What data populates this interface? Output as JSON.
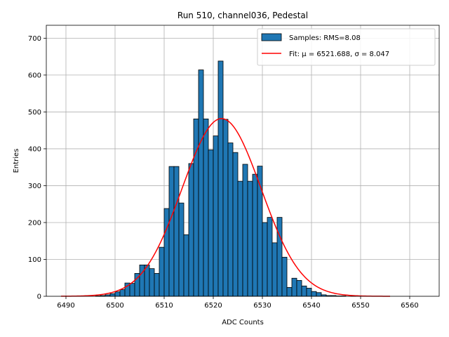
{
  "chart_data": {
    "type": "bar",
    "title": "Run 510, channel036, Pedestal",
    "xlabel": "ADC Counts",
    "ylabel": "Entries",
    "xlim": [
      6486,
      6566
    ],
    "ylim": [
      0,
      735
    ],
    "xticks": [
      6490,
      6500,
      6510,
      6520,
      6530,
      6540,
      6550,
      6560
    ],
    "yticks": [
      0,
      100,
      200,
      300,
      400,
      500,
      600,
      700
    ],
    "grid": true,
    "legend_position": "top-right",
    "bin_width": 1,
    "series": [
      {
        "name": "Samples: RMS=8.08",
        "kind": "histogram",
        "color": "#1f77b4",
        "edge_color": "#000000",
        "bins_left": [
          6496,
          6497,
          6498,
          6499,
          6500,
          6501,
          6502,
          6503,
          6504,
          6505,
          6506,
          6507,
          6508,
          6509,
          6510,
          6511,
          6512,
          6513,
          6514,
          6515,
          6516,
          6517,
          6518,
          6519,
          6520,
          6521,
          6522,
          6523,
          6524,
          6525,
          6526,
          6527,
          6528,
          6529,
          6530,
          6531,
          6532,
          6533,
          6534,
          6535,
          6536,
          6537,
          6538,
          6539,
          6540,
          6541,
          6542,
          6543,
          6544,
          6545,
          6546,
          6547,
          6548
        ],
        "values": [
          1,
          2,
          4,
          7,
          12,
          18,
          36,
          35,
          62,
          85,
          85,
          75,
          62,
          133,
          238,
          352,
          352,
          253,
          167,
          360,
          481,
          614,
          481,
          397,
          435,
          638,
          480,
          416,
          390,
          312,
          358,
          312,
          331,
          353,
          200,
          214,
          145,
          214,
          106,
          24,
          49,
          43,
          28,
          22,
          13,
          10,
          4,
          2,
          2,
          1,
          1,
          0,
          1
        ]
      },
      {
        "name": "Fit: μ = 6521.688, σ = 8.047",
        "kind": "gaussian_fit",
        "color": "#ff0000",
        "mu": 6521.688,
        "sigma": 8.047,
        "amplitude": 482,
        "x_range": [
          6489,
          6556
        ]
      }
    ]
  }
}
